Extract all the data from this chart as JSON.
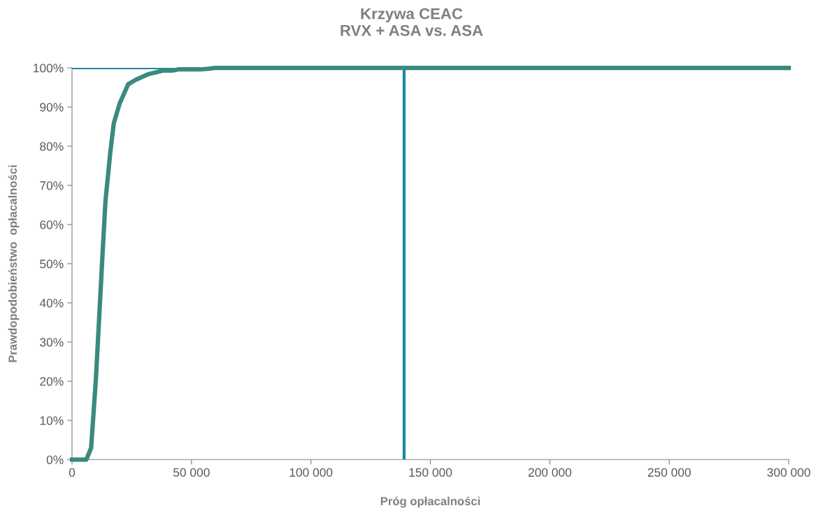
{
  "chart_data": {
    "type": "line",
    "title": "Krzywa CEAC\nRVX + ASA vs. ASA",
    "xlabel": "Próg opłacalności",
    "ylabel": "Prawdopodobieństwo  opłacalności",
    "series": [
      {
        "color": "#3a8a7e",
        "x": [
          0,
          6000,
          8000,
          10000,
          11500,
          13000,
          14000,
          16000,
          17500,
          20000,
          23500,
          26500,
          32000,
          38000,
          42000,
          44500,
          54000,
          57500,
          60000,
          300000
        ],
        "values": [
          0,
          0,
          3,
          20.6,
          37.8,
          55,
          66,
          78.3,
          85.9,
          91,
          95.8,
          96.9,
          98.4,
          99.3,
          99.3,
          99.6,
          99.6,
          99.8,
          100,
          100
        ]
      }
    ],
    "xlim": [
      0,
      300000
    ],
    "xticks": [
      0,
      {
        "value": 50000,
        "label": "50 000"
      },
      {
        "value": 100000,
        "label": "100 000"
      },
      {
        "value": 150000,
        "label": "150 000"
      },
      {
        "value": 200000,
        "label": "200 000"
      },
      {
        "value": 250000,
        "label": "250 000"
      },
      {
        "value": 300000,
        "label": "300 000"
      }
    ],
    "ylim": [
      0,
      100
    ],
    "yticks": [
      {
        "value": 0,
        "label": "0%"
      },
      {
        "value": 10,
        "label": "10%"
      },
      {
        "value": 20,
        "label": "20%"
      },
      {
        "value": 30,
        "label": "30%"
      },
      {
        "value": 40,
        "label": "40%"
      },
      {
        "value": 50,
        "label": "50%"
      },
      {
        "value": 60,
        "label": "60%"
      },
      {
        "value": 70,
        "label": "70%"
      },
      {
        "value": 80,
        "label": "80%"
      },
      {
        "value": 90,
        "label": "90%"
      },
      {
        "value": 100,
        "label": "100%"
      }
    ],
    "ref_lines": [
      {
        "axis": "x",
        "value": 139000,
        "color": "#1a86a3"
      },
      {
        "axis": "y",
        "value": 100,
        "color": "#1a86a3"
      }
    ],
    "grid": false,
    "marker": "none",
    "line_style": "solid"
  }
}
